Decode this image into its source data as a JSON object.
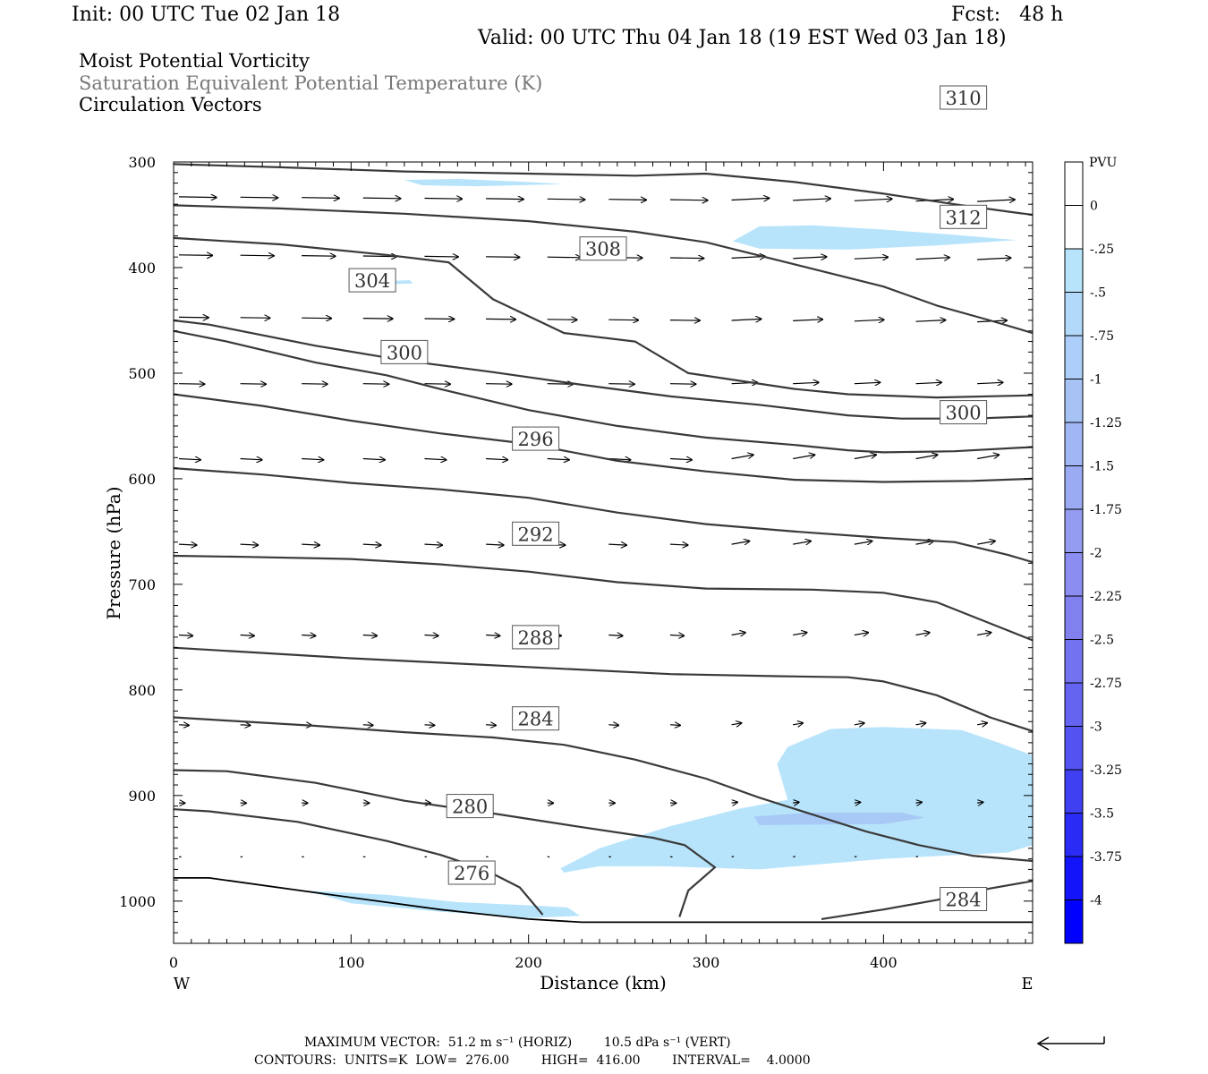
{
  "header": {
    "init": "Init: 00 UTC Tue 02 Jan 18",
    "fcst": "Fcst:   48 h",
    "valid": "Valid: 00 UTC Thu 04 Jan 18 (19 EST Wed 03 Jan 18)"
  },
  "titles": {
    "line1": "Moist Potential Vorticity",
    "line2": "Saturation Equivalent Potential Temperature (K)",
    "line3": "Circulation Vectors"
  },
  "footer": {
    "max_vector": "MAXIMUM VECTOR:  51.2 m s⁻¹ (HORIZ)        10.5 dPa s⁻¹ (VERT)",
    "contours": "CONTOURS:  UNITS=K  LOW=  276.00        HIGH=  416.00        INTERVAL=    4.0000"
  },
  "colors": {
    "contour": "#3a3a3a",
    "pv_light": "#b8e4fb",
    "pv_mid": "#a8c8f5"
  },
  "chart_data": {
    "type": "contour",
    "xlabel": "Distance (km)",
    "ylabel": "Pressure (hPa)",
    "xlim": [
      0,
      484
    ],
    "ylim": [
      1040,
      300
    ],
    "x_ticks": [
      0,
      100,
      200,
      300,
      400
    ],
    "y_ticks": [
      300,
      400,
      500,
      600,
      700,
      800,
      900,
      1000
    ],
    "x_end_labels": {
      "left": "W",
      "right": "E"
    },
    "colorbar": {
      "title": "PVU",
      "labels": [
        "0",
        "-.25",
        "-.5",
        "-.75",
        "-1",
        "-1.25",
        "-1.5",
        "-1.75",
        "-2",
        "-2.25",
        "-2.5",
        "-2.75",
        "-3",
        "-3.25",
        "-3.5",
        "-3.75",
        "-4"
      ],
      "colors": [
        "#ffffff",
        "#ffffff",
        "#b8e4fb",
        "#b2d9fa",
        "#adcef8",
        "#a7c3f6",
        "#a1b7f5",
        "#9aaaf3",
        "#939cf1",
        "#8b8ef0",
        "#8080ef",
        "#7373ef",
        "#6464f0",
        "#5353f1",
        "#4040f3",
        "#2b2bf6",
        "#1414fa",
        "#0000ff"
      ]
    },
    "theta_es_contours": [
      {
        "value": 276,
        "label": "276",
        "label_at": [
          168,
          973
        ],
        "points": [
          [
            0,
            913
          ],
          [
            20,
            915
          ],
          [
            70,
            925
          ],
          [
            120,
            943
          ],
          [
            150,
            956
          ],
          [
            175,
            970
          ],
          [
            195,
            987
          ],
          [
            208,
            1013
          ]
        ]
      },
      {
        "value": 280,
        "label": "280",
        "label_at": [
          167,
          910
        ],
        "points": [
          [
            0,
            876
          ],
          [
            30,
            877
          ],
          [
            80,
            888
          ],
          [
            130,
            905
          ],
          [
            180,
            917
          ],
          [
            230,
            930
          ],
          [
            270,
            940
          ],
          [
            288,
            947
          ],
          [
            305,
            968
          ],
          [
            290,
            990
          ],
          [
            285,
            1015
          ]
        ]
      },
      {
        "value": 284,
        "label": "284",
        "label_at": [
          204,
          827
        ],
        "points": [
          [
            0,
            826
          ],
          [
            30,
            829
          ],
          [
            80,
            834
          ],
          [
            130,
            840
          ],
          [
            180,
            845
          ],
          [
            220,
            852
          ],
          [
            260,
            866
          ],
          [
            300,
            884
          ],
          [
            330,
            902
          ],
          [
            360,
            918
          ],
          [
            390,
            934
          ],
          [
            420,
            947
          ],
          [
            450,
            957
          ],
          [
            484,
            962
          ]
        ]
      },
      {
        "value": 284,
        "label": "284",
        "label_at": [
          445,
          998
        ],
        "points": [
          [
            365,
            1017
          ],
          [
            400,
            1008
          ],
          [
            430,
            999
          ],
          [
            460,
            988
          ],
          [
            484,
            981
          ]
        ]
      },
      {
        "value": 288,
        "label": "288",
        "label_at": [
          204,
          750
        ],
        "points": [
          [
            0,
            760
          ],
          [
            40,
            764
          ],
          [
            100,
            770
          ],
          [
            160,
            775
          ],
          [
            220,
            780
          ],
          [
            280,
            785
          ],
          [
            340,
            787
          ],
          [
            380,
            788
          ],
          [
            400,
            792
          ],
          [
            430,
            805
          ],
          [
            460,
            826
          ],
          [
            484,
            839
          ]
        ]
      },
      {
        "value": 292,
        "label": "292",
        "label_at": [
          204,
          652
        ],
        "points": [
          [
            0,
            673
          ],
          [
            40,
            674
          ],
          [
            100,
            676
          ],
          [
            150,
            681
          ],
          [
            200,
            688
          ],
          [
            250,
            698
          ],
          [
            300,
            704
          ],
          [
            360,
            705
          ],
          [
            400,
            708
          ],
          [
            430,
            717
          ],
          [
            460,
            737
          ],
          [
            484,
            753
          ]
        ]
      },
      {
        "value": 296,
        "label": "296",
        "label_at": [
          204,
          562
        ],
        "points": [
          [
            0,
            590
          ],
          [
            50,
            596
          ],
          [
            100,
            604
          ],
          [
            150,
            610
          ],
          [
            200,
            618
          ],
          [
            250,
            632
          ],
          [
            300,
            643
          ],
          [
            350,
            650
          ],
          [
            400,
            656
          ],
          [
            440,
            660
          ],
          [
            470,
            672
          ],
          [
            484,
            679
          ]
        ]
      },
      {
        "value": 300,
        "label": "300",
        "label_at": [
          130,
          480
        ],
        "points": [
          [
            0,
            520
          ],
          [
            50,
            531
          ],
          [
            100,
            545
          ],
          [
            150,
            557
          ],
          [
            200,
            567
          ],
          [
            250,
            583
          ],
          [
            300,
            593
          ],
          [
            350,
            601
          ],
          [
            400,
            603
          ],
          [
            450,
            602
          ],
          [
            484,
            600
          ]
        ]
      },
      {
        "value": 300,
        "label": "300",
        "label_at": [
          445,
          537
        ],
        "points": []
      },
      {
        "value": 304,
        "label": "304",
        "label_at": [
          112,
          412
        ],
        "points": [
          [
            0,
            450
          ],
          [
            20,
            454
          ],
          [
            80,
            474
          ],
          [
            130,
            488
          ],
          [
            180,
            499
          ],
          [
            230,
            511
          ],
          [
            280,
            522
          ],
          [
            330,
            530
          ],
          [
            380,
            540
          ],
          [
            410,
            543
          ],
          [
            450,
            543
          ],
          [
            484,
            541
          ]
        ]
      },
      {
        "value": 304,
        "label": "",
        "label_at": null,
        "points": [
          [
            0,
            460
          ],
          [
            30,
            470
          ],
          [
            80,
            490
          ],
          [
            120,
            502
          ],
          [
            150,
            515
          ],
          [
            200,
            535
          ],
          [
            250,
            550
          ],
          [
            300,
            561
          ],
          [
            350,
            568
          ],
          [
            380,
            573
          ],
          [
            400,
            575
          ],
          [
            440,
            574
          ],
          [
            484,
            570
          ]
        ]
      },
      {
        "value": 308,
        "label": "308",
        "label_at": [
          242,
          382
        ],
        "points": [
          [
            0,
            372
          ],
          [
            60,
            378
          ],
          [
            120,
            388
          ],
          [
            155,
            395
          ],
          [
            180,
            430
          ],
          [
            220,
            462
          ],
          [
            260,
            470
          ],
          [
            290,
            500
          ],
          [
            350,
            515
          ],
          [
            380,
            520
          ],
          [
            430,
            523
          ],
          [
            484,
            521
          ]
        ]
      },
      {
        "value": 312,
        "label": "312",
        "label_at": [
          445,
          352
        ],
        "points": [
          [
            0,
            341
          ],
          [
            60,
            344
          ],
          [
            130,
            349
          ],
          [
            200,
            356
          ],
          [
            260,
            366
          ],
          [
            300,
            376
          ],
          [
            350,
            397
          ],
          [
            400,
            418
          ],
          [
            430,
            436
          ],
          [
            460,
            450
          ],
          [
            484,
            462
          ]
        ]
      },
      {
        "value": 310,
        "label": "310",
        "label_at": [
          445,
          239
        ],
        "points": [
          [
            0,
            302
          ],
          [
            60,
            305
          ],
          [
            130,
            309
          ],
          [
            200,
            311
          ],
          [
            260,
            313
          ],
          [
            300,
            311
          ],
          [
            350,
            319
          ],
          [
            400,
            330
          ],
          [
            440,
            340
          ],
          [
            470,
            347
          ],
          [
            484,
            350
          ]
        ]
      }
    ],
    "pv_regions": [
      {
        "color": "#b8e4fb",
        "polygon": [
          [
            130,
            317
          ],
          [
            160,
            316
          ],
          [
            200,
            319
          ],
          [
            220,
            321
          ],
          [
            170,
            323
          ],
          [
            140,
            322
          ]
        ]
      },
      {
        "color": "#b8e4fb",
        "polygon": [
          [
            315,
            375
          ],
          [
            330,
            361
          ],
          [
            360,
            360
          ],
          [
            400,
            364
          ],
          [
            440,
            369
          ],
          [
            475,
            374
          ],
          [
            430,
            379
          ],
          [
            380,
            383
          ],
          [
            330,
            382
          ]
        ]
      },
      {
        "color": "#b8e4fb",
        "polygon": [
          [
            116,
            413
          ],
          [
            133,
            412
          ],
          [
            135,
            415
          ],
          [
            117,
            416
          ]
        ]
      },
      {
        "color": "#b8e4fb",
        "polygon": [
          [
            346,
            854
          ],
          [
            370,
            837
          ],
          [
            400,
            835
          ],
          [
            444,
            838
          ],
          [
            465,
            850
          ],
          [
            484,
            862
          ],
          [
            484,
            947
          ],
          [
            470,
            954
          ],
          [
            400,
            960
          ],
          [
            330,
            970
          ],
          [
            275,
            967
          ],
          [
            240,
            967
          ],
          [
            220,
            973
          ],
          [
            218,
            969
          ],
          [
            240,
            950
          ],
          [
            280,
            929
          ],
          [
            320,
            912
          ],
          [
            346,
            904
          ],
          [
            340,
            870
          ]
        ]
      },
      {
        "color": "#a8c8f5",
        "polygon": [
          [
            327,
            920
          ],
          [
            360,
            916
          ],
          [
            410,
            916
          ],
          [
            423,
            921
          ],
          [
            400,
            927
          ],
          [
            330,
            928
          ]
        ]
      },
      {
        "color": "#b8e4fb",
        "polygon": [
          [
            75,
            990
          ],
          [
            120,
            994
          ],
          [
            160,
            1001
          ],
          [
            200,
            1004
          ],
          [
            222,
            1006
          ],
          [
            229,
            1014
          ],
          [
            200,
            1016
          ],
          [
            150,
            1010
          ],
          [
            100,
            1002
          ]
        ]
      }
    ],
    "terrain_surface_hpa": [
      [
        0,
        978
      ],
      [
        20,
        978
      ],
      [
        80,
        992
      ],
      [
        150,
        1008
      ],
      [
        200,
        1017
      ],
      [
        230,
        1020
      ],
      [
        300,
        1020
      ],
      [
        484,
        1020
      ]
    ],
    "vector_rows_hpa": [
      333,
      388,
      447,
      510,
      581,
      662,
      748,
      833,
      907,
      958
    ]
  }
}
